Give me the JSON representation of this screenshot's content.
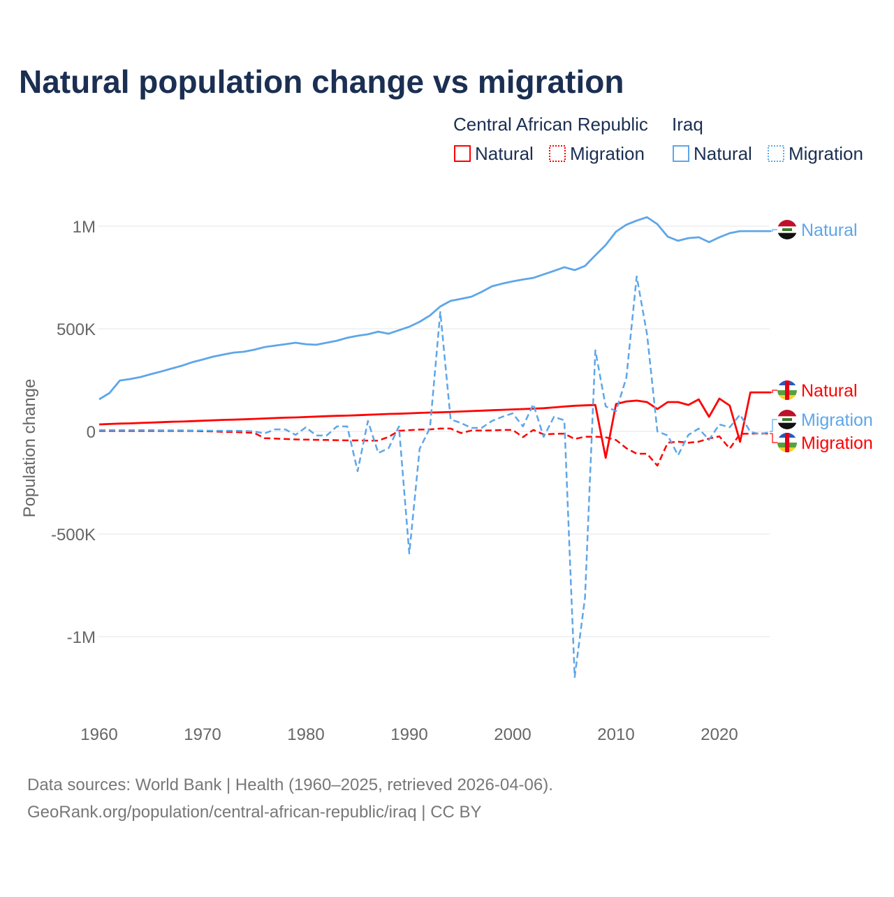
{
  "title": "Natural population change vs migration",
  "legend": {
    "groups": [
      {
        "country": "Central African Republic",
        "items": [
          "Natural",
          "Migration"
        ],
        "color": "#ff0000"
      },
      {
        "country": "Iraq",
        "items": [
          "Natural",
          "Migration"
        ],
        "color": "#5ea6e8"
      }
    ]
  },
  "footer": {
    "line1": "Data sources: World Bank | Health (1960–2025, retrieved 2026-04-06).",
    "line2": "GeoRank.org/population/central-african-republic/iraq | CC BY"
  },
  "chart_data": {
    "type": "line",
    "title": "Natural population change vs migration",
    "xlabel": "",
    "ylabel": "Population change",
    "xlim": [
      1960,
      2025
    ],
    "ylim": [
      -1200000,
      1050000
    ],
    "x_ticks": [
      "1960",
      "1970",
      "1980",
      "1990",
      "2000",
      "2010",
      "2020"
    ],
    "y_ticks": [
      {
        "value": 1000000,
        "label": "1M"
      },
      {
        "value": 500000,
        "label": "500K"
      },
      {
        "value": 0,
        "label": "0"
      },
      {
        "value": -500000,
        "label": "-500K"
      },
      {
        "value": -1000000,
        "label": "-1M"
      }
    ],
    "grid": true,
    "start_year": 1960,
    "series": [
      {
        "name": "Iraq Natural",
        "label": "Natural",
        "color": "#5ea6e8",
        "dashed": false,
        "values_k": [
          156,
          187,
          248,
          255,
          265,
          279,
          292,
          306,
          320,
          337,
          350,
          364,
          374,
          384,
          388,
          398,
          411,
          418,
          425,
          432,
          425,
          422,
          432,
          442,
          456,
          466,
          473,
          486,
          476,
          493,
          510,
          534,
          565,
          609,
          636,
          646,
          656,
          680,
          707,
          720,
          731,
          740,
          748,
          765,
          782,
          800,
          786,
          806,
          858,
          908,
          973,
          1007,
          1027,
          1044,
          1010,
          949,
          929,
          942,
          946,
          922,
          946,
          966,
          976,
          976,
          976,
          976
        ]
      },
      {
        "name": "Central African Republic Natural",
        "label": "Natural",
        "color": "#ff0000",
        "dashed": false,
        "values_k": [
          34,
          36,
          38,
          39,
          41,
          43,
          45,
          47,
          48,
          50,
          52,
          54,
          56,
          57,
          59,
          61,
          63,
          65,
          67,
          68,
          70,
          72,
          74,
          76,
          77,
          79,
          81,
          83,
          85,
          86,
          88,
          90,
          92,
          93,
          95,
          97,
          99,
          101,
          103,
          105,
          107,
          109,
          111,
          113,
          117,
          121,
          125,
          127,
          129,
          -129,
          133,
          146,
          150,
          143,
          109,
          143,
          143,
          129,
          156,
          71,
          160,
          126,
          -51,
          190,
          190,
          190
        ]
      },
      {
        "name": "Iraq Migration",
        "label": "Migration",
        "color": "#5ea6e8",
        "dashed": true,
        "values_k": [
          6,
          6,
          6,
          6,
          6,
          6,
          5,
          5,
          5,
          4,
          4,
          3,
          3,
          3,
          2,
          0,
          -10,
          10,
          10,
          -17,
          20,
          -20,
          -20,
          24,
          24,
          -194,
          51,
          -105,
          -82,
          24,
          -595,
          -85,
          17,
          582,
          58,
          41,
          17,
          17,
          51,
          71,
          88,
          24,
          133,
          -27,
          71,
          54,
          -1197,
          -810,
          395,
          122,
          99,
          262,
          755,
          473,
          0,
          -20,
          -116,
          -17,
          14,
          -41,
          34,
          20,
          82,
          -3,
          -14,
          0
        ]
      },
      {
        "name": "Central African Republic Migration",
        "label": "Migration",
        "color": "#ff0000",
        "dashed": true,
        "values_k": [
          2,
          2,
          2,
          2,
          2,
          2,
          2,
          2,
          2,
          2,
          1,
          0,
          -2,
          -3,
          -5,
          -7,
          -33,
          -35,
          -37,
          -39,
          -40,
          -41,
          -42,
          -43,
          -44,
          -44,
          -45,
          -45,
          -27,
          3,
          6,
          9,
          10,
          14,
          14,
          -8,
          4,
          4,
          5,
          7,
          7,
          -28,
          7,
          -15,
          -12,
          -11,
          -37,
          -26,
          -26,
          -29,
          -42,
          -82,
          -109,
          -109,
          -167,
          -55,
          -50,
          -55,
          -50,
          -35,
          -24,
          -84,
          -12,
          -11,
          -10,
          -11
        ]
      }
    ]
  }
}
